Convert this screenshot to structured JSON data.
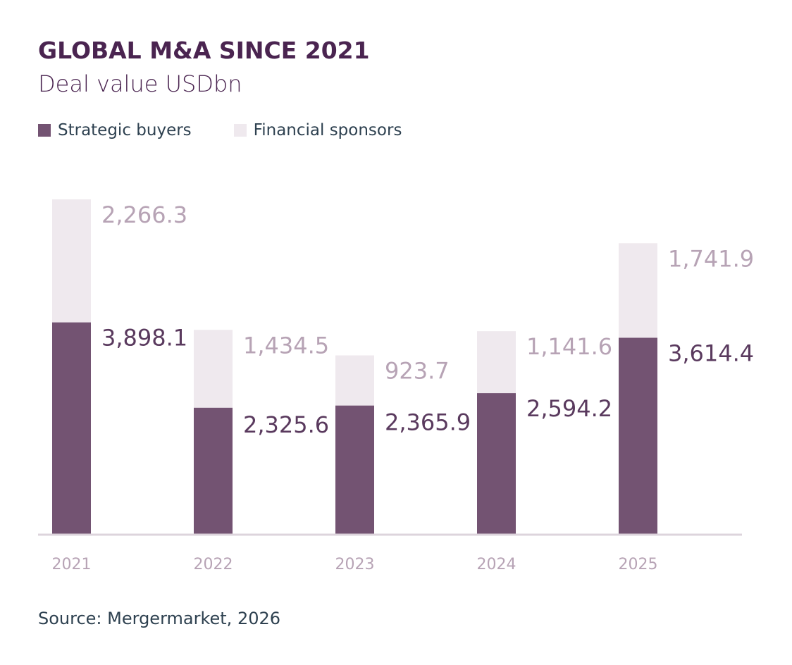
{
  "title": "GLOBAL M&A SINCE 2021",
  "subtitle": "Deal value USDbn",
  "source": "Source: Mergermarket, 2026",
  "colors": {
    "strategic": "#735372",
    "financial": "#efe9ee",
    "financial_label": "#b7a3b5",
    "strategic_label": "#5a3a5e",
    "axis": "#ddd4dc",
    "tick": "#b7a3b5"
  },
  "chart_data": {
    "type": "bar",
    "stacked": true,
    "title": "GLOBAL M&A SINCE 2021",
    "subtitle": "Deal value USDbn",
    "categories": [
      "2021",
      "2022",
      "2023",
      "2024",
      "2025"
    ],
    "series": [
      {
        "name": "Strategic buyers",
        "values": [
          3898.1,
          2325.6,
          2365.9,
          2594.2,
          3614.4
        ],
        "labels": [
          "3,898.1",
          "2,325.6",
          "2,365.9",
          "2,594.2",
          "3,614.4"
        ]
      },
      {
        "name": "Financial sponsors",
        "values": [
          2266.3,
          1434.5,
          923.7,
          1141.6,
          1741.9
        ],
        "labels": [
          "2,266.3",
          "1,434.5",
          "923.7",
          "1,141.6",
          "1,741.9"
        ]
      }
    ],
    "legend": "top-left",
    "grid": false,
    "ylim": [
      0,
      6164.4
    ]
  }
}
